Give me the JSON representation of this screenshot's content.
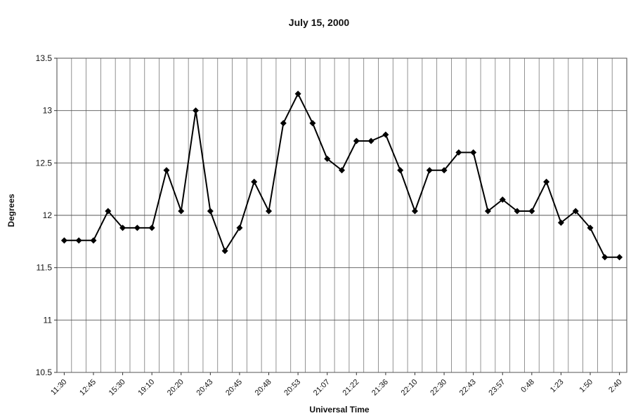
{
  "chart_data": {
    "type": "line",
    "title": "July 15, 2000",
    "xlabel": "Universal Time",
    "ylabel": "Degrees",
    "ylim": [
      10.5,
      13.5
    ],
    "yticks": [
      "10.5",
      "11",
      "11.5",
      "12",
      "12.5",
      "13",
      "13.5"
    ],
    "x_tick_labels": [
      "11:30",
      "12:45",
      "15:30",
      "19:10",
      "20:20",
      "20:43",
      "20:45",
      "20:48",
      "20:53",
      "21:07",
      "21:22",
      "21:36",
      "22:10",
      "22:30",
      "22:43",
      "23:57",
      "0:48",
      "1:23",
      "1:50",
      "2:40"
    ],
    "grid": true,
    "legend": "none",
    "marker": "diamond",
    "color": "#000000",
    "series": [
      {
        "values": [
          11.76,
          11.76,
          11.76,
          12.04,
          11.88,
          11.88,
          11.88,
          12.43,
          12.04,
          13.0,
          12.04,
          11.66,
          11.88,
          12.32,
          12.04,
          12.88,
          13.16,
          12.88,
          12.54,
          12.43,
          12.71,
          12.71,
          12.77,
          12.43,
          12.04,
          12.43,
          12.43,
          12.6,
          12.6,
          12.04,
          12.15,
          12.04,
          12.04,
          12.32,
          11.93,
          12.04,
          11.88,
          11.6,
          11.6
        ]
      }
    ]
  }
}
